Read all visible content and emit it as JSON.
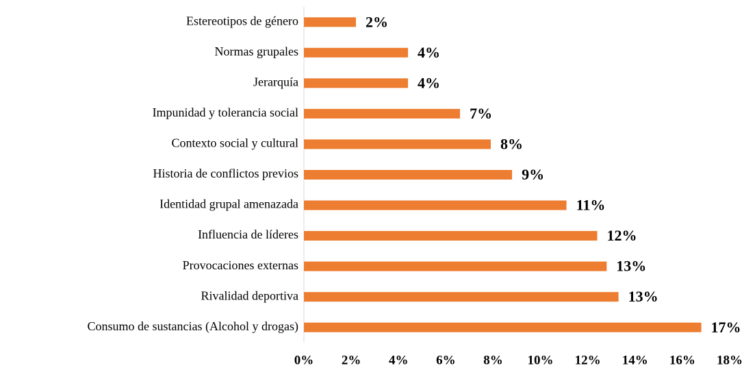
{
  "chart_data": {
    "type": "bar",
    "orientation": "horizontal",
    "categories": [
      "Estereotipos de género",
      "Normas grupales",
      "Jerarquía",
      "Impunidad y tolerancia social",
      "Contexto social y cultural",
      "Historia de conflictos previos",
      "Identidad grupal amenazada",
      "Influencia de líderes",
      "Provocaciones externas",
      "Rivalidad deportiva",
      "Consumo de sustancias (Alcohol y drogas)"
    ],
    "values": [
      2.2,
      4.4,
      4.4,
      6.6,
      7.9,
      8.8,
      11.1,
      12.4,
      12.8,
      13.3,
      16.8
    ],
    "value_labels": [
      "2%",
      "4%",
      "4%",
      "7%",
      "8%",
      "9%",
      "11%",
      "12%",
      "13%",
      "13%",
      "17%"
    ],
    "color": "#ed7d31",
    "xlim": [
      0,
      18
    ],
    "xticks": [
      {
        "value": 0,
        "label": "0%"
      },
      {
        "value": 2,
        "label": "2%"
      },
      {
        "value": 4,
        "label": "4%"
      },
      {
        "value": 6,
        "label": "6%"
      },
      {
        "value": 8,
        "label": "8%"
      },
      {
        "value": 10,
        "label": "10%"
      },
      {
        "value": 12,
        "label": "12%"
      },
      {
        "value": 14,
        "label": "14%"
      },
      {
        "value": 16,
        "label": "16%"
      },
      {
        "value": 18,
        "label": "18%"
      }
    ],
    "grid": false
  }
}
